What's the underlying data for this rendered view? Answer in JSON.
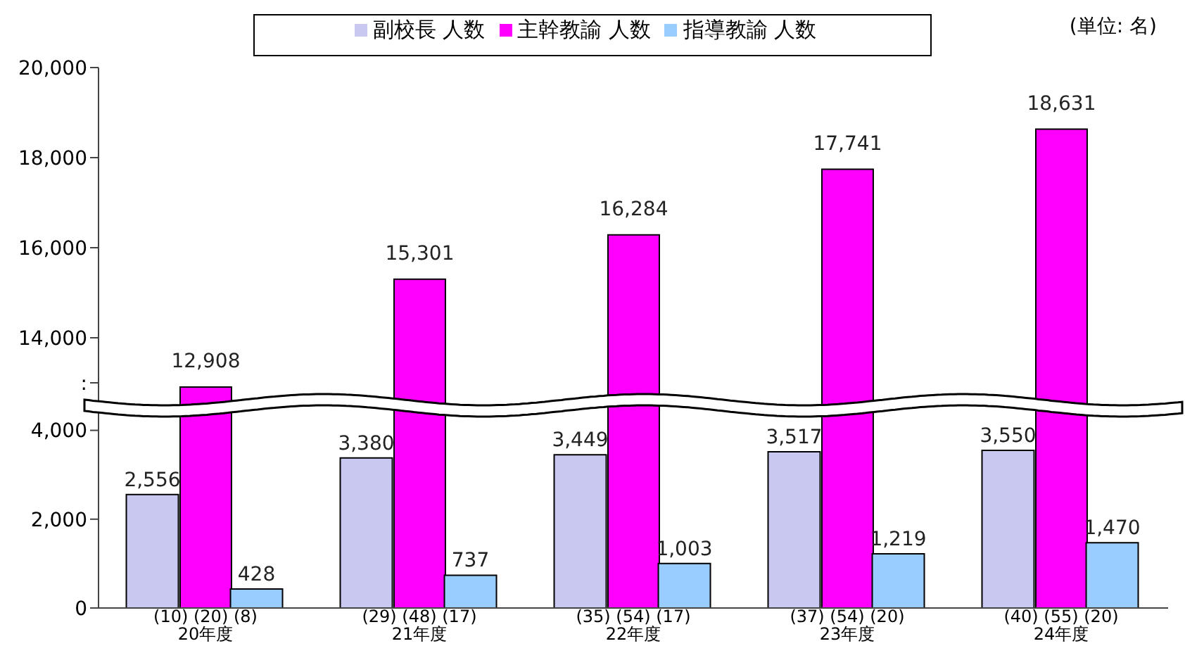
{
  "chart_data": [
    {
      "type": "bar",
      "categories": [
        null,
        null,
        null,
        null,
        null
      ],
      "series": [
        {
          "color": "#ff00ff",
          "values": [
            12908,
            15301,
            16284,
            17741,
            18631
          ],
          "value_labels": [
            "12,908",
            "15,301",
            "16,284",
            "17,741",
            "18,631"
          ]
        }
      ],
      "ylim": [
        12500,
        20000
      ],
      "yticks": [
        {
          "value": 13000,
          "label": ":"
        },
        {
          "value": 14000,
          "label": "14,000"
        },
        {
          "value": 16000,
          "label": "16,000"
        },
        {
          "value": 18000,
          "label": "18,000"
        },
        {
          "value": 20000,
          "label": "20,000"
        }
      ],
      "tick_labels": "y",
      "annotations": [
        "(単位: 名)"
      ]
    },
    {
      "type": "bar",
      "categories": [
        "20年度",
        "21年度",
        "22年度",
        "23年度",
        "24年度"
      ],
      "series": [
        {
          "name": "副校長 人数",
          "color": "#c8c8f0",
          "values": [
            2556,
            3380,
            3449,
            3517,
            3550
          ],
          "value_labels": [
            "2,556",
            "3,380",
            "3,449",
            "3,517",
            "3,550"
          ]
        },
        {
          "name": "主幹教諭 人数",
          "color": "#ff00ff",
          "values": [
            null,
            null,
            null,
            null,
            null
          ]
        },
        {
          "name": "指導教諭 人数",
          "color": "#99ccff",
          "values": [
            428,
            737,
            1003,
            1219,
            1470
          ],
          "value_labels": [
            "428",
            "737",
            "1,003",
            "1,219",
            "1,470"
          ]
        }
      ],
      "ylim": [
        0,
        4500
      ],
      "yticks": [
        {
          "value": 0,
          "label": "0"
        },
        {
          "value": 2000,
          "label": "2,000"
        },
        {
          "value": 4000,
          "label": "4,000"
        }
      ],
      "legend": "top",
      "annotations": [
        "(10) (20) (8)",
        "(29) (48) (17)",
        "(35) (54) (17)",
        "(37) (54) (20)",
        "(40) (55) (20)"
      ]
    }
  ]
}
